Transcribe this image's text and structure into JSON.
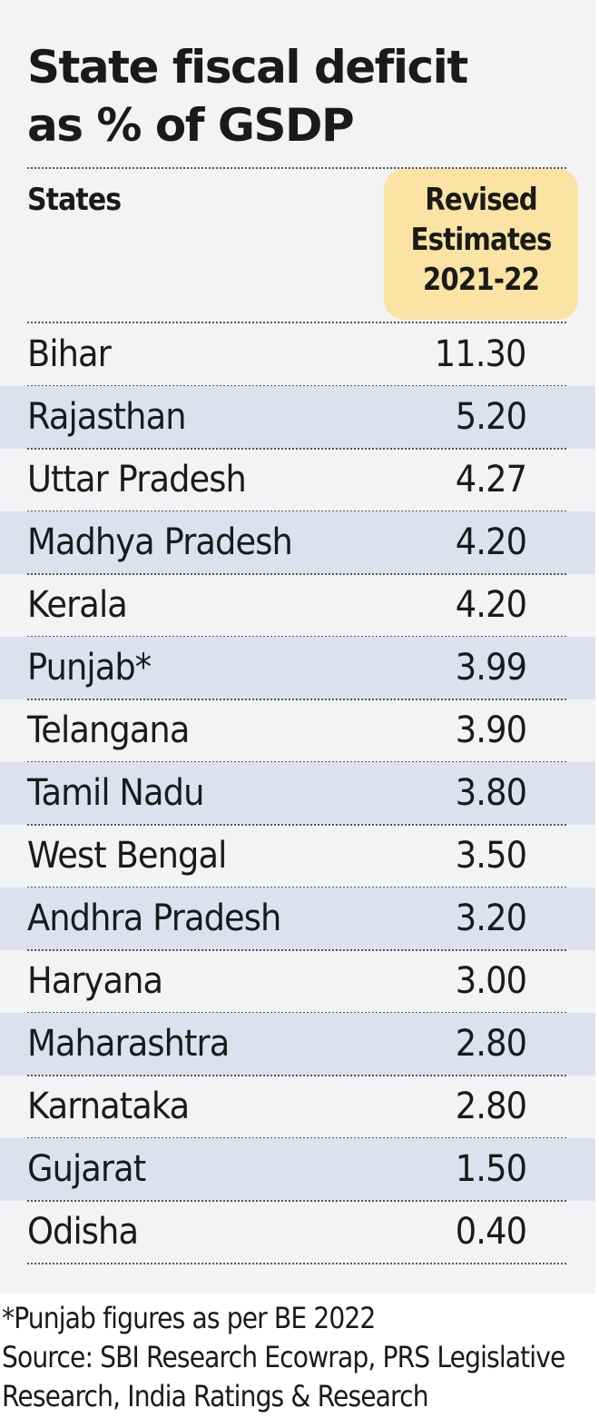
{
  "title_line1": "State fiscal deficit",
  "title_line2": "as % of GSDP",
  "header": {
    "states_label": "States",
    "value_label_lines": [
      "Revised",
      "Estimates",
      "2021-22"
    ]
  },
  "highlight_color": "#fbe3a3",
  "stripe_color": "#dde1ee",
  "chart_data": {
    "type": "table",
    "title": "State fiscal deficit as % of GSDP",
    "columns": [
      "States",
      "Revised Estimates 2021-22"
    ],
    "rows": [
      {
        "state": "Bihar",
        "value": "11.30"
      },
      {
        "state": "Rajasthan",
        "value": "5.20"
      },
      {
        "state": "Uttar Pradesh",
        "value": "4.27"
      },
      {
        "state": "Madhya Pradesh",
        "value": "4.20"
      },
      {
        "state": "Kerala",
        "value": "4.20"
      },
      {
        "state": "Punjab*",
        "value": "3.99"
      },
      {
        "state": "Telangana",
        "value": "3.90"
      },
      {
        "state": "Tamil Nadu",
        "value": "3.80"
      },
      {
        "state": "West Bengal",
        "value": "3.50"
      },
      {
        "state": "Andhra Pradesh",
        "value": "3.20"
      },
      {
        "state": "Haryana",
        "value": "3.00"
      },
      {
        "state": "Maharashtra",
        "value": "2.80"
      },
      {
        "state": "Karnataka",
        "value": "2.80"
      },
      {
        "state": "Gujarat",
        "value": "1.50"
      },
      {
        "state": "Odisha",
        "value": "0.40"
      }
    ]
  },
  "footer": {
    "note": "*Punjab figures as per BE 2022",
    "source_line1": "Source: SBI Research Ecowrap, PRS Legislative",
    "source_line2": "Research, India Ratings & Research"
  }
}
